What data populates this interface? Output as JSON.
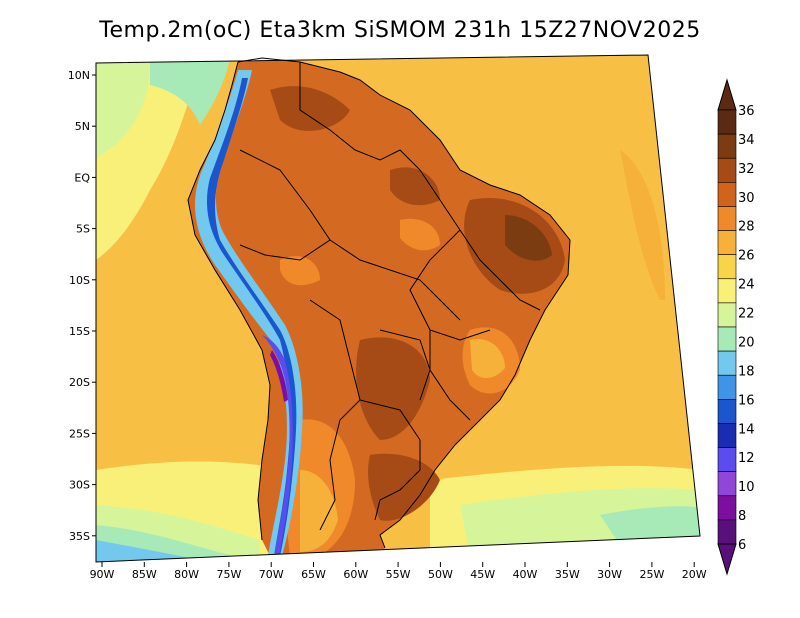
{
  "title": "Temp.2m(oC) Eta3km SiSMOM 231h 15Z27NOV2025",
  "map": {
    "lon_labels": [
      "90W",
      "85W",
      "80W",
      "75W",
      "70W",
      "65W",
      "60W",
      "55W",
      "50W",
      "45W",
      "40W",
      "35W",
      "30W",
      "25W",
      "20W"
    ],
    "lat_labels": [
      "10N",
      "5N",
      "EQ",
      "5S",
      "10S",
      "15S",
      "20S",
      "25S",
      "30S",
      "35S"
    ]
  },
  "colorbar": {
    "labels": [
      "36",
      "34",
      "32",
      "30",
      "28",
      "26",
      "24",
      "22",
      "20",
      "18",
      "16",
      "14",
      "12",
      "10",
      "8",
      "6"
    ],
    "colors": [
      "#5a2b12",
      "#7c3c12",
      "#a64b16",
      "#d2631d",
      "#f0892a",
      "#f6b13a",
      "#f8d548",
      "#f9f07a",
      "#d6f59b",
      "#a7eab8",
      "#73c8ee",
      "#3f94e7",
      "#1c56cf",
      "#1a2db2",
      "#5b4cf0",
      "#8f46d9",
      "#7d0fa0",
      "#5a107a"
    ],
    "top_color": "#5a2b12",
    "bottom_color": "#5a107a"
  },
  "colors": {
    "ocean_base": "#f8bf45",
    "land_base": "#d46a22",
    "border": "#000000"
  }
}
